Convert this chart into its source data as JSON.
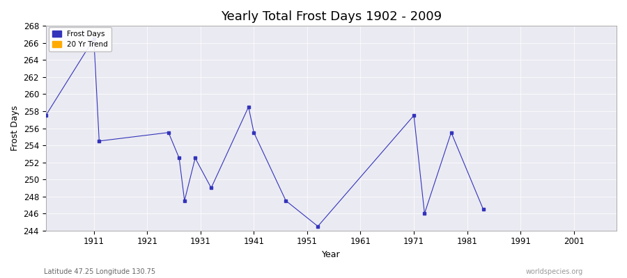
{
  "title": "Yearly Total Frost Days 1902 - 2009",
  "xlabel": "Year",
  "ylabel": "Frost Days",
  "subtitle_left": "Latitude 47.25 Longitude 130.75",
  "subtitle_right": "worldspecies.org",
  "ylim": [
    244,
    268
  ],
  "xlim": [
    1902,
    2009
  ],
  "xticks": [
    1911,
    1921,
    1931,
    1941,
    1951,
    1961,
    1971,
    1981,
    1991,
    2001
  ],
  "yticks": [
    244,
    246,
    248,
    250,
    252,
    254,
    256,
    258,
    260,
    262,
    264,
    266,
    268
  ],
  "frost_days": [
    [
      1902,
      257.5
    ],
    [
      1911,
      266.5
    ],
    [
      1912,
      254.5
    ],
    [
      1925,
      255.5
    ],
    [
      1927,
      252.5
    ],
    [
      1928,
      247.5
    ],
    [
      1930,
      252.5
    ],
    [
      1933,
      249.0
    ],
    [
      1940,
      258.5
    ],
    [
      1941,
      255.5
    ],
    [
      1947,
      247.5
    ],
    [
      1953,
      244.5
    ],
    [
      1971,
      257.5
    ],
    [
      1973,
      246.0
    ],
    [
      1978,
      255.5
    ],
    [
      1984,
      246.5
    ]
  ],
  "frost_color": "#3333bb",
  "trend_color": "#ffaa00",
  "bg_color": "#eaeaf2",
  "grid_color": "#ffffff",
  "fig_bg_color": "#ffffff",
  "legend_frost": "Frost Days",
  "legend_trend": "20 Yr Trend",
  "marker_size": 3,
  "line_width": 0.8,
  "title_fontsize": 13,
  "axis_fontsize": 8.5,
  "label_fontsize": 9
}
